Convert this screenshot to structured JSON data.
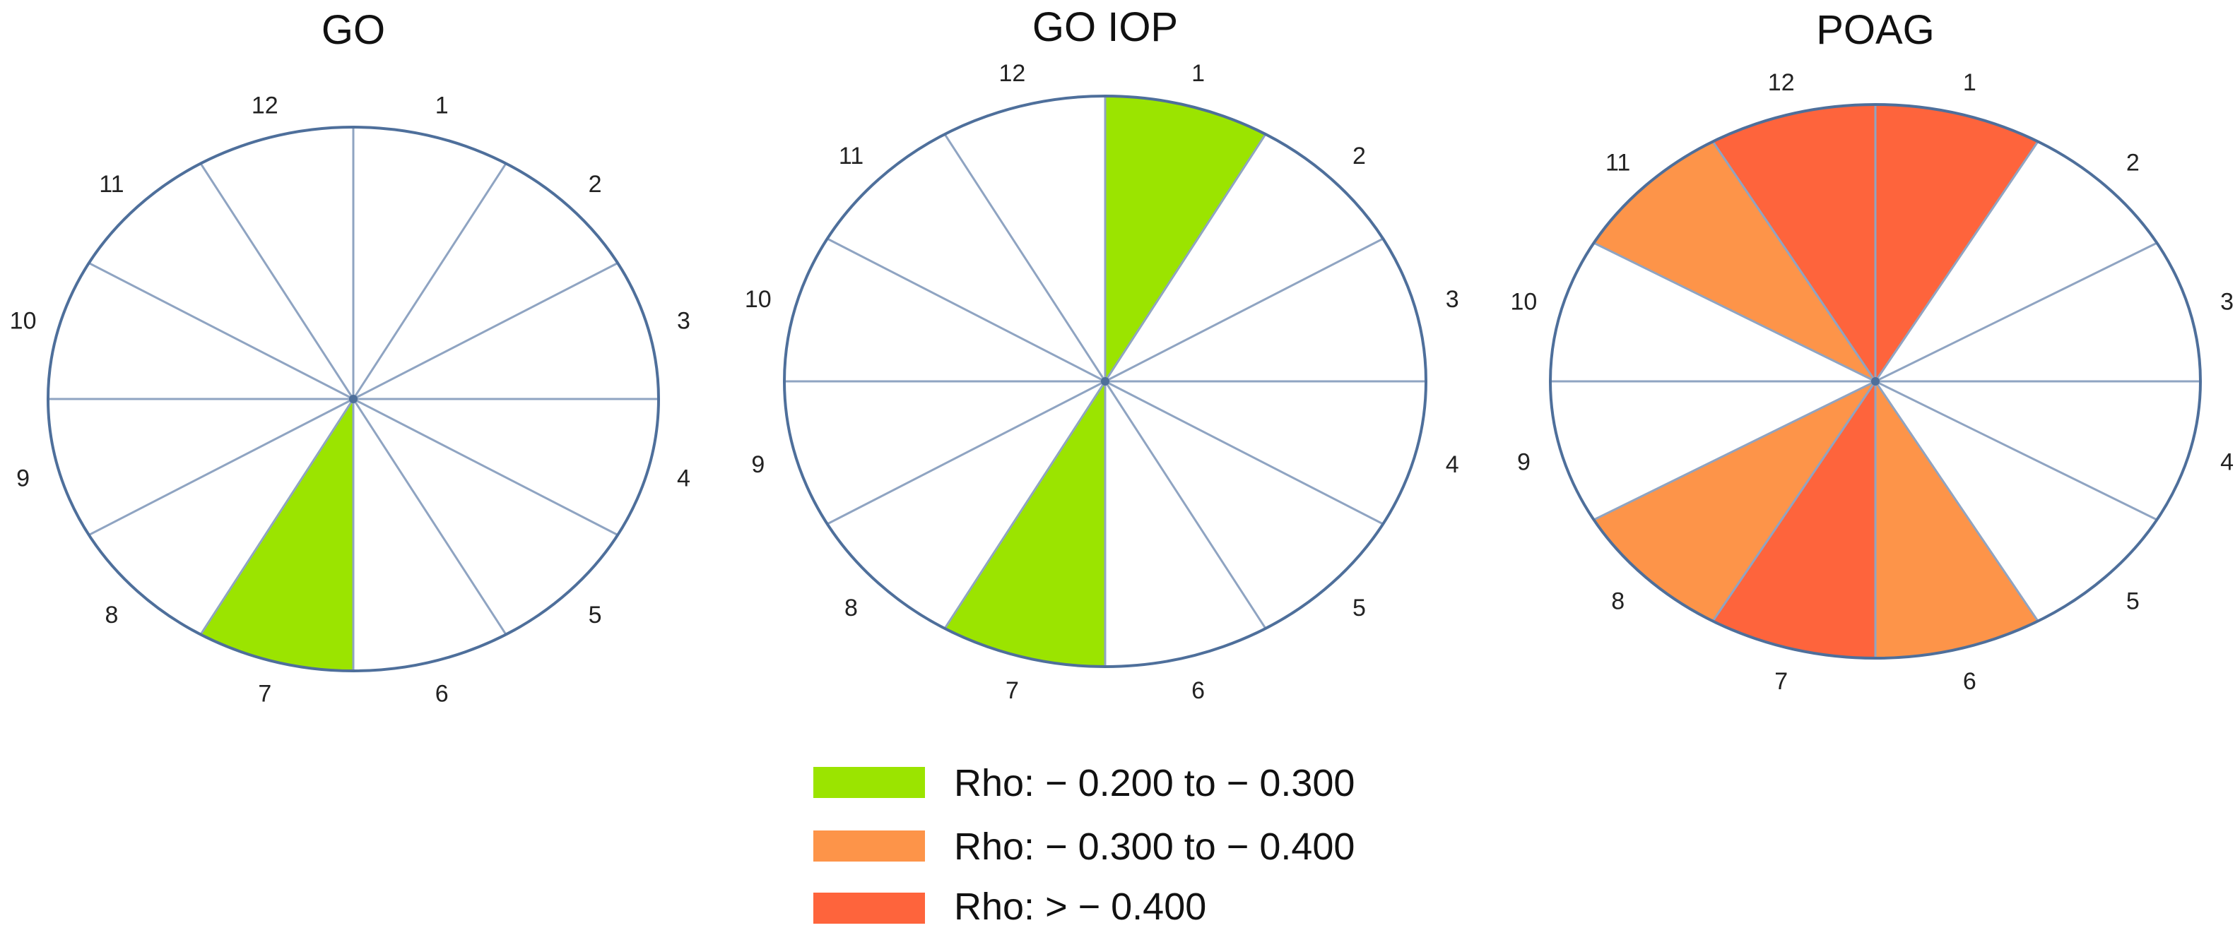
{
  "diagrams": [
    {
      "title": "GO",
      "sectors": [
        {
          "hour": "1",
          "category": "none"
        },
        {
          "hour": "2",
          "category": "none"
        },
        {
          "hour": "3",
          "category": "none"
        },
        {
          "hour": "4",
          "category": "none"
        },
        {
          "hour": "5",
          "category": "none"
        },
        {
          "hour": "6",
          "category": "none"
        },
        {
          "hour": "7",
          "category": "green"
        },
        {
          "hour": "8",
          "category": "none"
        },
        {
          "hour": "9",
          "category": "none"
        },
        {
          "hour": "10",
          "category": "none"
        },
        {
          "hour": "11",
          "category": "none"
        },
        {
          "hour": "12",
          "category": "none"
        }
      ]
    },
    {
      "title": "GO IOP",
      "sectors": [
        {
          "hour": "1",
          "category": "green"
        },
        {
          "hour": "2",
          "category": "none"
        },
        {
          "hour": "3",
          "category": "none"
        },
        {
          "hour": "4",
          "category": "none"
        },
        {
          "hour": "5",
          "category": "none"
        },
        {
          "hour": "6",
          "category": "none"
        },
        {
          "hour": "7",
          "category": "green"
        },
        {
          "hour": "8",
          "category": "none"
        },
        {
          "hour": "9",
          "category": "none"
        },
        {
          "hour": "10",
          "category": "none"
        },
        {
          "hour": "11",
          "category": "none"
        },
        {
          "hour": "12",
          "category": "none"
        }
      ]
    },
    {
      "title": "POAG",
      "sectors": [
        {
          "hour": "1",
          "category": "red"
        },
        {
          "hour": "2",
          "category": "none"
        },
        {
          "hour": "3",
          "category": "none"
        },
        {
          "hour": "4",
          "category": "none"
        },
        {
          "hour": "5",
          "category": "none"
        },
        {
          "hour": "6",
          "category": "orange"
        },
        {
          "hour": "7",
          "category": "red"
        },
        {
          "hour": "8",
          "category": "orange"
        },
        {
          "hour": "9",
          "category": "none"
        },
        {
          "hour": "10",
          "category": "none"
        },
        {
          "hour": "11",
          "category": "orange"
        },
        {
          "hour": "12",
          "category": "red"
        }
      ]
    }
  ],
  "legend": [
    {
      "category": "green",
      "label": "Rho: − 0.200 to − 0.300"
    },
    {
      "category": "orange",
      "label": "Rho: − 0.300 to − 0.400"
    },
    {
      "category": "red",
      "label": "Rho: > − 0.400"
    }
  ],
  "colors": {
    "green": "#9be400",
    "orange": "#fd9449",
    "red": "#fe643c",
    "outline": "#4e6f9b",
    "spoke": "#8fa4c2"
  }
}
